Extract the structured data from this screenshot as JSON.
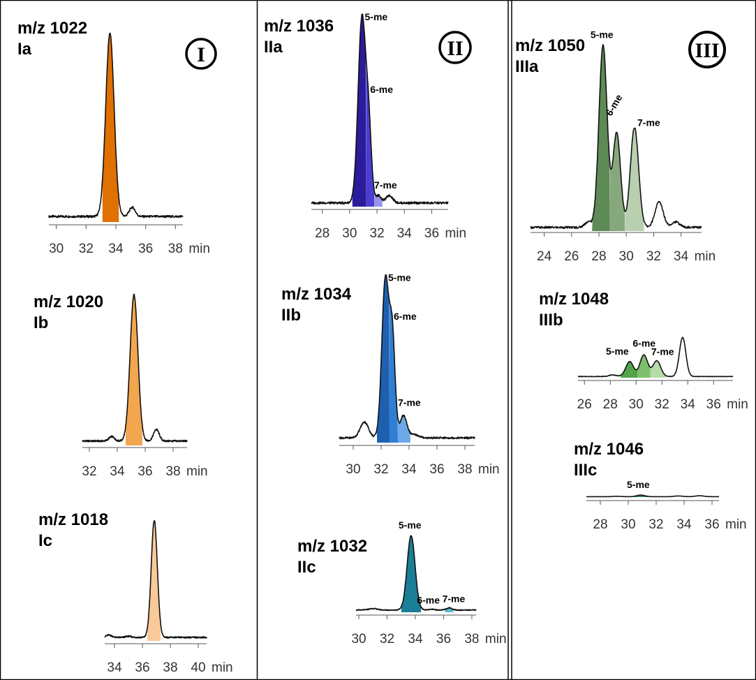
{
  "panels": [
    {
      "numeral": "I"
    },
    {
      "numeral": "II"
    },
    {
      "numeral": "III"
    }
  ],
  "colors": {
    "Ia": "#e07000",
    "Ib": "#f2a64e",
    "Ic": "#f9c99a",
    "IIa_5": "#2a1c9a",
    "IIa_6": "#4c3ed0",
    "IIa_7": "#9a93ee",
    "IIb_5": "#1f5fb0",
    "IIb_6": "#2e7fd4",
    "IIb_7": "#6ea8e6",
    "IIc_5": "#1a7f96",
    "IIc_6": "#3fa6c0",
    "IIc_7": "#5bb9d0",
    "IIIa_5": "#5e8a55",
    "IIIa_6": "#87a87c",
    "IIIa_7": "#b8cfb0",
    "IIIb_5": "#52a34a",
    "IIIb_6": "#7cc06c",
    "IIIb_7": "#b6dcaa",
    "IIIc_5": "#2f8a5e",
    "trace": "#111111"
  },
  "chart_data": [
    {
      "type": "line",
      "panel": "I",
      "title_mz": "m/z 1022",
      "title_id": "Ia",
      "xticks": [
        30,
        32,
        34,
        36,
        38
      ],
      "xunit": "min",
      "xlim": [
        29.5,
        38.5
      ],
      "ylim": [
        0,
        1.05
      ],
      "baseline": 0.03,
      "peaks": [
        {
          "x": 33.6,
          "y": 1.0,
          "w": 0.28,
          "shade": "Ia",
          "fill": [
            33.1,
            34.2
          ],
          "label": ""
        },
        {
          "x": 35.1,
          "y": 0.05,
          "w": 0.2
        }
      ]
    },
    {
      "type": "line",
      "panel": "I",
      "title_mz": "m/z 1020",
      "title_id": "Ib",
      "xticks": [
        32,
        34,
        36,
        38
      ],
      "xunit": "min",
      "xlim": [
        31.5,
        39.0
      ],
      "ylim": [
        0,
        1.05
      ],
      "baseline": 0.03,
      "peaks": [
        {
          "x": 35.2,
          "y": 1.0,
          "w": 0.28,
          "shade": "Ib",
          "fill": [
            34.6,
            35.8
          ],
          "label": ""
        },
        {
          "x": 33.6,
          "y": 0.03,
          "w": 0.2
        },
        {
          "x": 36.8,
          "y": 0.08,
          "w": 0.2
        }
      ]
    },
    {
      "type": "line",
      "panel": "I",
      "title_mz": "m/z 1018",
      "title_id": "Ic",
      "xticks": [
        34,
        36,
        38,
        40
      ],
      "xunit": "min",
      "xlim": [
        33.3,
        40.6
      ],
      "ylim": [
        0,
        1.05
      ],
      "baseline": 0.03,
      "peaks": [
        {
          "x": 36.85,
          "y": 1.0,
          "w": 0.22,
          "shade": "Ic",
          "fill": [
            36.35,
            37.3
          ],
          "label": ""
        },
        {
          "x": 33.6,
          "y": 0.02,
          "w": 0.2
        },
        {
          "x": 35.0,
          "y": 0.01,
          "w": 0.2
        }
      ]
    },
    {
      "type": "line",
      "panel": "II",
      "title_mz": "m/z 1036",
      "title_id": "IIa",
      "xticks": [
        28,
        30,
        32,
        34,
        36
      ],
      "xunit": "min",
      "xlim": [
        27.2,
        37.2
      ],
      "ylim": [
        0,
        1.05
      ],
      "baseline": 0.02,
      "peaks": [
        {
          "x": 30.9,
          "y": 1.0,
          "w": 0.28,
          "shade": "IIa_5",
          "label": "5-me"
        },
        {
          "x": 31.4,
          "y": 0.36,
          "w": 0.2,
          "shade": "IIa_6",
          "label": "6-me"
        },
        {
          "x": 32.1,
          "y": 0.04,
          "w": 0.2,
          "shade": "IIa_7",
          "label": "7-me"
        },
        {
          "x": 32.9,
          "y": 0.04,
          "w": 0.25
        }
      ],
      "fills": [
        [
          30.2,
          31.2,
          "IIa_5"
        ],
        [
          31.2,
          31.8,
          "IIa_6"
        ],
        [
          31.8,
          32.4,
          "IIa_7"
        ]
      ]
    },
    {
      "type": "line",
      "panel": "II",
      "title_mz": "m/z 1034",
      "title_id": "IIb",
      "xticks": [
        30,
        32,
        34,
        36,
        38
      ],
      "xunit": "min",
      "xlim": [
        29.0,
        38.7
      ],
      "ylim": [
        0,
        1.05
      ],
      "baseline": 0.03,
      "peaks": [
        {
          "x": 32.3,
          "y": 1.0,
          "w": 0.25,
          "shade": "IIb_5",
          "label": "5-me"
        },
        {
          "x": 32.8,
          "y": 0.62,
          "w": 0.2,
          "shade": "IIb_6",
          "label": "6-me"
        },
        {
          "x": 33.6,
          "y": 0.14,
          "w": 0.25,
          "shade": "IIb_7",
          "label": "7-me"
        },
        {
          "x": 30.8,
          "y": 0.1,
          "w": 0.3
        },
        {
          "x": 34.4,
          "y": 0.02,
          "w": 0.3
        }
      ],
      "fills": [
        [
          31.7,
          32.6,
          "IIb_5"
        ],
        [
          32.6,
          33.2,
          "IIb_6"
        ],
        [
          33.2,
          34.1,
          "IIb_7"
        ]
      ]
    },
    {
      "type": "line",
      "panel": "II",
      "title_mz": "m/z 1032",
      "title_id": "IIc",
      "xticks": [
        30,
        32,
        34,
        36,
        38
      ],
      "xunit": "min",
      "xlim": [
        29.8,
        38.3
      ],
      "ylim": [
        0,
        1.05
      ],
      "baseline": 0.03,
      "peaks": [
        {
          "x": 33.7,
          "y": 1.0,
          "w": 0.28,
          "shade": "IIc_5",
          "label": "5-me"
        },
        {
          "x": 35.2,
          "y": 0.01,
          "w": 0.2,
          "shade": "IIc_6",
          "label": "6-me"
        },
        {
          "x": 36.4,
          "y": 0.03,
          "w": 0.2,
          "shade": "IIc_7",
          "label": "7-me"
        },
        {
          "x": 31.0,
          "y": 0.02,
          "w": 0.3
        }
      ],
      "fills": [
        [
          33.0,
          34.4,
          "IIc_5"
        ],
        [
          36.1,
          36.7,
          "IIc_7"
        ]
      ]
    },
    {
      "type": "line",
      "panel": "III",
      "title_mz": "m/z 1050",
      "title_id": "IIIa",
      "xticks": [
        24,
        26,
        28,
        30,
        32,
        34
      ],
      "xunit": "min",
      "xlim": [
        23.0,
        35.5
      ],
      "ylim": [
        0,
        1.05
      ],
      "baseline": 0.02,
      "peaks": [
        {
          "x": 28.3,
          "y": 1.0,
          "w": 0.3,
          "shade": "IIIa_5",
          "label": "5-me"
        },
        {
          "x": 29.3,
          "y": 0.52,
          "w": 0.28,
          "shade": "IIIa_6",
          "label": "6-me"
        },
        {
          "x": 30.6,
          "y": 0.55,
          "w": 0.3,
          "shade": "IIIa_7",
          "label": "7-me"
        },
        {
          "x": 32.4,
          "y": 0.14,
          "w": 0.3
        },
        {
          "x": 27.2,
          "y": 0.03,
          "w": 0.25
        },
        {
          "x": 33.6,
          "y": 0.03,
          "w": 0.3
        }
      ],
      "fills": [
        [
          27.5,
          28.8,
          "IIIa_5"
        ],
        [
          28.8,
          29.9,
          "IIIa_6"
        ],
        [
          29.9,
          31.3,
          "IIIa_7"
        ]
      ]
    },
    {
      "type": "line",
      "panel": "III",
      "title_mz": "m/z 1048",
      "title_id": "IIIb",
      "xticks": [
        26,
        28,
        30,
        32,
        34,
        36
      ],
      "xunit": "min",
      "xlim": [
        25.5,
        37.5
      ],
      "ylim": [
        0,
        1.05
      ],
      "baseline": 0.03,
      "peaks": [
        {
          "x": 29.5,
          "y": 0.38,
          "w": 0.3,
          "shade": "IIIb_5",
          "label": "5-me"
        },
        {
          "x": 30.6,
          "y": 0.55,
          "w": 0.3,
          "shade": "IIIb_6",
          "label": "6-me"
        },
        {
          "x": 31.6,
          "y": 0.4,
          "w": 0.3,
          "shade": "IIIb_7",
          "label": "7-me"
        },
        {
          "x": 33.6,
          "y": 1.0,
          "w": 0.25
        },
        {
          "x": 28.2,
          "y": 0.04,
          "w": 0.3
        }
      ],
      "fills": [
        [
          28.8,
          30.1,
          "IIIb_5"
        ],
        [
          30.1,
          31.1,
          "IIIb_6"
        ],
        [
          31.1,
          32.3,
          "IIIb_7"
        ]
      ]
    },
    {
      "type": "line",
      "panel": "III",
      "title_mz": "m/z 1046",
      "title_id": "IIIc",
      "xticks": [
        28,
        30,
        32,
        34,
        36
      ],
      "xunit": "min",
      "xlim": [
        27.0,
        36.5
      ],
      "ylim": [
        0,
        1.05
      ],
      "baseline": 0.05,
      "peaks": [
        {
          "x": 30.9,
          "y": 0.2,
          "w": 0.3,
          "shade": "IIIc_5",
          "label": "5-me"
        },
        {
          "x": 33.6,
          "y": 0.09,
          "w": 0.3
        },
        {
          "x": 35.1,
          "y": 0.12,
          "w": 0.3
        },
        {
          "x": 29.2,
          "y": 0.05,
          "w": 0.3
        }
      ],
      "fills": [
        [
          30.4,
          31.4,
          "IIIc_5"
        ]
      ]
    }
  ]
}
